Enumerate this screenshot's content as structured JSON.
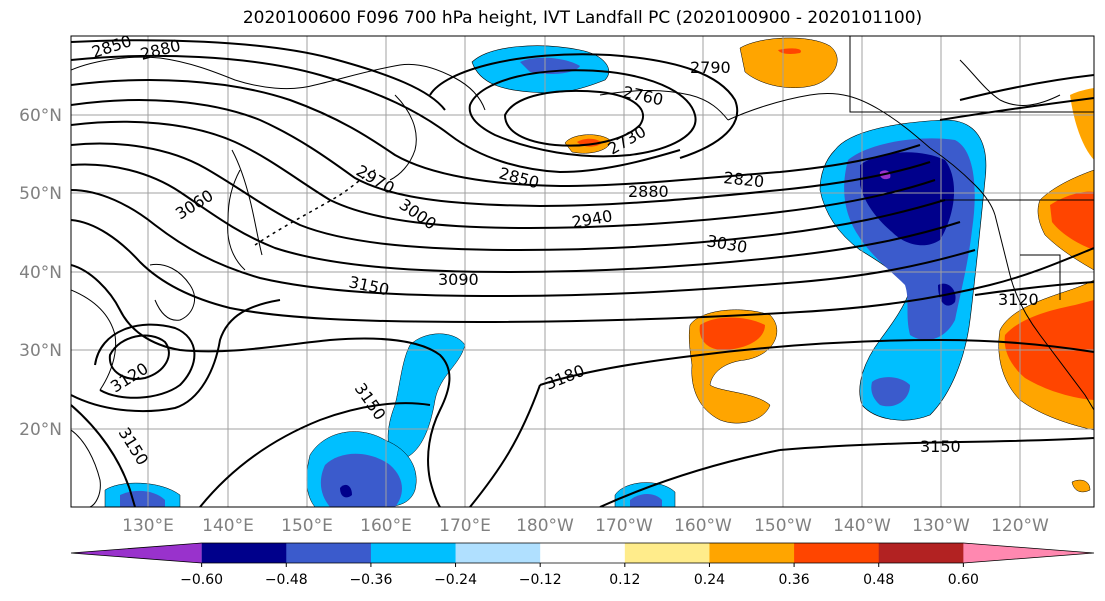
{
  "title": "2020100600 F096 700 hPa height, IVT Landfall PC (2020100900 - 2020101100)",
  "lat_labels": [
    "60°N",
    "50°N",
    "40°N",
    "30°N",
    "20°N"
  ],
  "lon_labels": [
    "130°E",
    "140°E",
    "150°E",
    "160°E",
    "170°E",
    "180°W",
    "170°W",
    "160°W",
    "150°W",
    "140°W",
    "130°W",
    "120°W"
  ],
  "contour_labels": [
    "2850",
    "2880",
    "2790",
    "2760",
    "2730",
    "2850",
    "2880",
    "2820",
    "2970",
    "3000",
    "3060",
    "2940",
    "3030",
    "3090",
    "3150",
    "3120",
    "3180",
    "3150",
    "3120",
    "3150",
    "3150"
  ],
  "colorbar": {
    "ticks": [
      "−0.60",
      "−0.48",
      "−0.36",
      "−0.24",
      "−0.12",
      "0.12",
      "0.24",
      "0.36",
      "0.48",
      "0.60"
    ],
    "colors": [
      "#9932cc",
      "#00008b",
      "#3b5bcc",
      "#00bfff",
      "#b0e0ff",
      "#ffffff",
      "#ffec8b",
      "#ffa500",
      "#ff4500",
      "#b22222",
      "#ff88b0"
    ]
  }
}
